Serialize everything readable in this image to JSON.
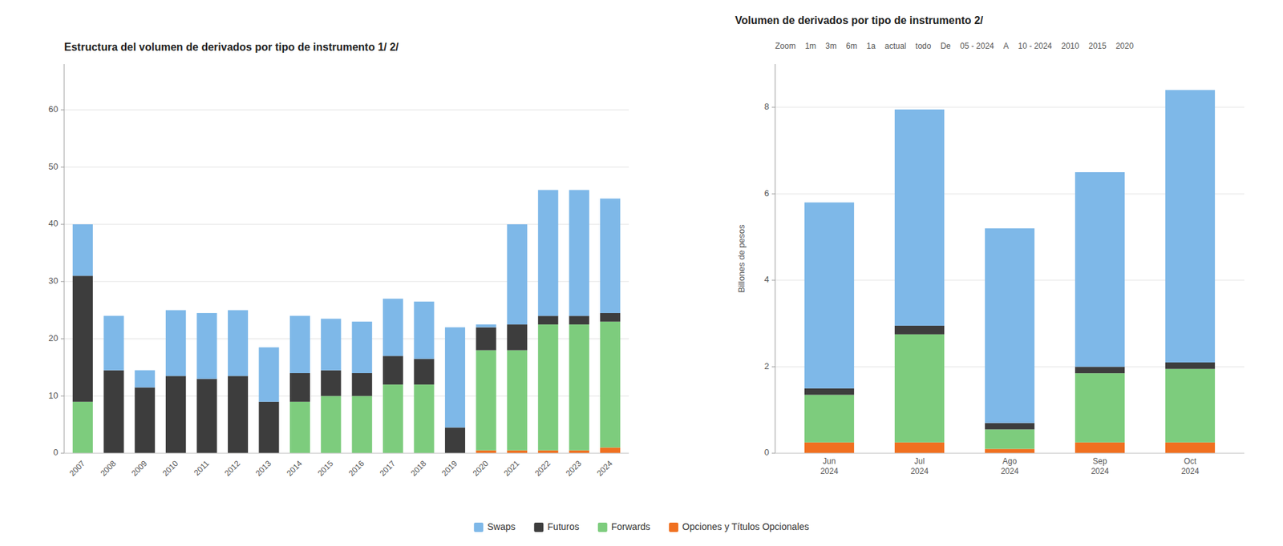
{
  "chart_data": [
    {
      "type": "bar",
      "stacked": true,
      "grid": true,
      "legend": "bottom",
      "title": "Estructura del volumen de derivados por tipo de instrumento 1/ 2/",
      "categories": [
        "2007",
        "2008",
        "2009",
        "2010",
        "2011",
        "2012",
        "2013",
        "2014",
        "2015",
        "2016",
        "2017",
        "2018",
        "2019",
        "2020",
        "2021",
        "2022",
        "2023",
        "2024"
      ],
      "series": [
        {
          "name": "Opciones y Títulos Opcionales",
          "color": "#f07020",
          "values": [
            0.0,
            0.0,
            0.0,
            0.0,
            0.0,
            0.0,
            0.0,
            0.0,
            0.0,
            0.0,
            0.0,
            0.0,
            0.0,
            0.5,
            0.5,
            0.5,
            0.5,
            1.0
          ]
        },
        {
          "name": "Forwards",
          "color": "#7dcc7d",
          "values": [
            9.0,
            0.0,
            0.0,
            0.0,
            0.0,
            0.0,
            0.0,
            9.0,
            10.0,
            10.0,
            12.0,
            12.0,
            0.0,
            17.5,
            17.5,
            22.0,
            22.0,
            22.0
          ]
        },
        {
          "name": "Futuros",
          "color": "#3d3d3d",
          "values": [
            22.0,
            14.5,
            11.5,
            13.5,
            13.0,
            13.5,
            9.0,
            5.0,
            4.5,
            4.0,
            5.0,
            4.5,
            4.5,
            4.0,
            4.5,
            1.5,
            1.5,
            1.5
          ]
        },
        {
          "name": "Swaps",
          "color": "#7eb8e8",
          "values": [
            9.0,
            9.5,
            3.0,
            11.5,
            11.5,
            11.5,
            9.5,
            10.0,
            9.0,
            9.0,
            10.0,
            10.0,
            17.5,
            0.5,
            17.5,
            22.0,
            22.0,
            20.0
          ]
        }
      ],
      "ylim": [
        0,
        68
      ],
      "yticks": [
        0,
        10,
        20,
        30,
        40,
        50,
        60
      ]
    },
    {
      "type": "bar",
      "stacked": true,
      "grid": true,
      "title": "Volumen de derivados por tipo de instrumento 2/",
      "ylabel": "Billones de pesos",
      "categories": [
        "Jun\n2024",
        "Jul\n2024",
        "Ago\n2024",
        "Sep\n2024",
        "Oct\n2024"
      ],
      "series": [
        {
          "name": "Opciones y Títulos Opcionales",
          "color": "#f07020",
          "values": [
            0.25,
            0.25,
            0.1,
            0.25,
            0.25
          ]
        },
        {
          "name": "Forwards",
          "color": "#7dcc7d",
          "values": [
            1.1,
            2.5,
            0.45,
            1.6,
            1.7
          ]
        },
        {
          "name": "Futuros",
          "color": "#3d3d3d",
          "values": [
            0.15,
            0.2,
            0.15,
            0.15,
            0.15
          ]
        },
        {
          "name": "Swaps",
          "color": "#7eb8e8",
          "values": [
            4.3,
            5.0,
            4.5,
            4.5,
            6.3
          ]
        }
      ],
      "ylim": [
        0,
        9
      ],
      "yticks": [
        0,
        2,
        4,
        6,
        8
      ],
      "annotations": [
        "Zoom",
        "1m",
        "3m",
        "6m",
        "1a",
        "actual",
        "todo",
        "De",
        "05 - 2024",
        "A",
        "10 - 2024",
        "2010",
        "2015",
        "2020"
      ]
    }
  ]
}
